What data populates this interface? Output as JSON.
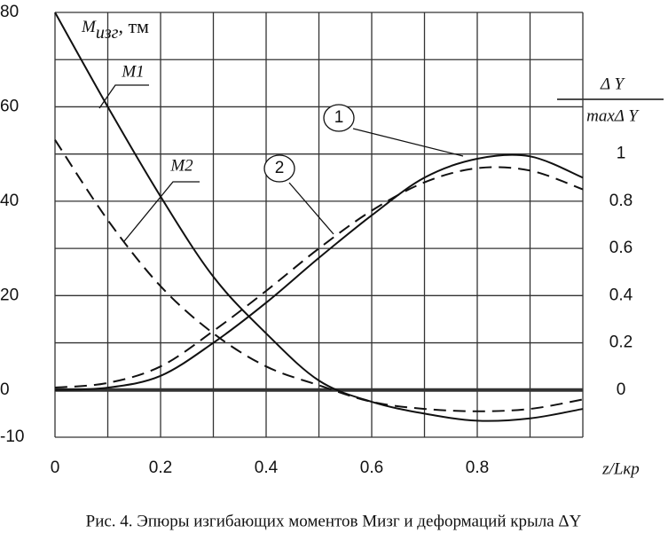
{
  "chart_data": {
    "type": "line",
    "ylabel": {
      "main": "M",
      "sub": "изг",
      "unit": ", тм"
    },
    "y2label": {
      "numerator": "Δ Y",
      "denominator": "maxΔ Y"
    },
    "xlabel": "z/Lкр",
    "caption": "Рис. 4. Эпюры изгибающих моментов Mизг и деформаций крыла ΔY",
    "x": [
      0,
      0.1,
      0.2,
      0.3,
      0.4,
      0.5,
      0.6,
      0.7,
      0.8,
      0.9,
      1.0
    ],
    "series": [
      {
        "name": "M1",
        "color": "#111111",
        "dashed": false,
        "values": [
          80,
          60,
          41,
          24,
          12,
          2,
          -2.5,
          -5,
          -6.5,
          -6,
          -4
        ]
      },
      {
        "name": "M2",
        "color": "#111111",
        "dashed": true,
        "values": [
          53,
          36,
          22,
          12,
          5,
          1,
          -2.5,
          -4,
          -4.5,
          -4,
          -2
        ]
      },
      {
        "name": "1",
        "color": "#111111",
        "dashed": false,
        "axis": "y2",
        "values": [
          0,
          0.01,
          0.06,
          0.2,
          0.37,
          0.56,
          0.74,
          0.9,
          0.98,
          0.99,
          0.9
        ]
      },
      {
        "name": "2",
        "color": "#111111",
        "dashed": true,
        "axis": "y2",
        "values": [
          0.01,
          0.03,
          0.1,
          0.25,
          0.42,
          0.6,
          0.76,
          0.88,
          0.94,
          0.93,
          0.85
        ]
      }
    ],
    "xlim": [
      0,
      1.0
    ],
    "xticks": [
      0,
      0.2,
      0.4,
      0.6,
      0.8
    ],
    "x_minor_ticks": [
      0.1,
      0.3,
      0.5,
      0.7,
      0.9,
      1.0
    ],
    "ylim": [
      -10,
      80
    ],
    "yticks": [
      -10,
      0,
      20,
      40,
      60,
      80
    ],
    "y_minor_ticks": [
      10,
      30,
      50,
      70
    ],
    "y2lim": [
      -0.2,
      1.6
    ],
    "y2ticks": [
      0,
      0.2,
      0.4,
      0.6,
      0.8,
      1
    ],
    "grid": true
  }
}
